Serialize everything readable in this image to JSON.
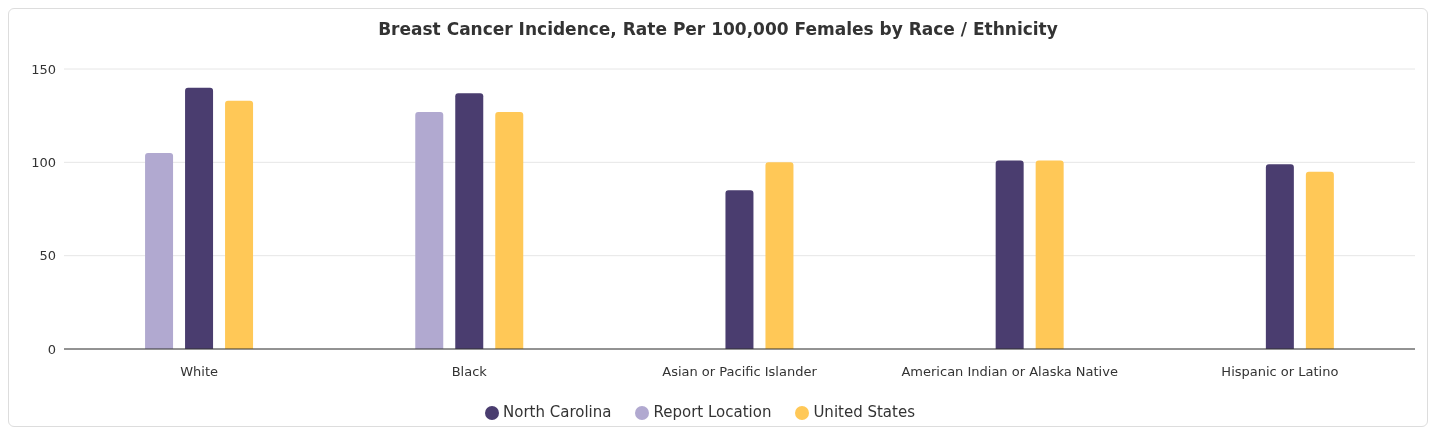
{
  "chart_data": {
    "type": "bar",
    "title": "Breast Cancer Incidence, Rate Per 100,000 Females by Race / Ethnicity",
    "categories": [
      "White",
      "Black",
      "Asian or Pacific Islander",
      "American Indian or Alaska Native",
      "Hispanic or Latino"
    ],
    "series": [
      {
        "name": "Report Location",
        "color": "#b1a9d0",
        "values": [
          105,
          127,
          null,
          null,
          null
        ]
      },
      {
        "name": "North Carolina",
        "color": "#4a3d6f",
        "values": [
          140,
          137,
          85,
          101,
          99
        ]
      },
      {
        "name": "United States",
        "color": "#ffc857",
        "values": [
          133,
          127,
          100,
          101,
          95
        ]
      }
    ],
    "ylim": [
      0,
      150
    ],
    "yticks": [
      0,
      50,
      100,
      150
    ],
    "grid": "y",
    "legend": "bottom"
  }
}
